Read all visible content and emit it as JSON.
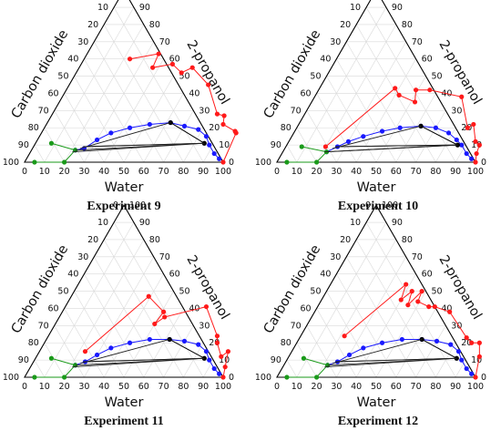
{
  "figure": {
    "axis_titles": {
      "left": "Carbon dioxide",
      "right": "2-propanol",
      "bottom": "Water"
    },
    "ticks": [
      "0",
      "10",
      "20",
      "30",
      "40",
      "50",
      "60",
      "70",
      "80",
      "90",
      "100"
    ],
    "colors": {
      "co2_phase": "#ff1a1a",
      "liquid_phase": "#1a1aff",
      "vapor_side": "#1a9a1a",
      "plait": "#000000",
      "tie_line": "#222222",
      "frame": "#000000",
      "grid": "#d9d9d9"
    }
  },
  "chart_data": [
    {
      "type": "scatter",
      "title": "Experiment 9",
      "axes": {
        "bottom": "Water",
        "left": "Carbon dioxide",
        "right": "2-propanol",
        "range": [
          0,
          100
        ],
        "grid": true
      },
      "series": [
        {
          "color": "#ff1a1a",
          "points": [
            [
              23,
              60
            ],
            [
              36,
              63
            ],
            [
              37,
              55
            ],
            [
              46,
              57
            ],
            [
              53,
              52
            ],
            [
              57,
              55
            ],
            [
              70,
              45
            ],
            [
              83,
              28
            ],
            [
              87,
              27
            ],
            [
              89,
              22
            ],
            [
              97,
              18
            ],
            [
              98,
              17
            ],
            [
              100,
              0
            ]
          ]
        },
        {
          "color": "#1a1aff",
          "points": [
            [
              22,
              7
            ],
            [
              26,
              8
            ],
            [
              30,
              13
            ],
            [
              35,
              17
            ],
            [
              43,
              20
            ],
            [
              52,
              22
            ],
            [
              62,
              23
            ],
            [
              70,
              21
            ],
            [
              78,
              19
            ],
            [
              84,
              15
            ],
            [
              88,
              10
            ],
            [
              93,
              5
            ],
            [
              97,
              2
            ]
          ]
        },
        {
          "color": "#1a9a1a",
          "points": [
            [
              5,
              0
            ],
            [
              20,
              0
            ],
            [
              22,
              7
            ],
            [
              8,
              11
            ]
          ]
        },
        {
          "color": "#000000",
          "points": [
            [
              62,
              23
            ],
            [
              85,
              11
            ]
          ]
        },
        {
          "type": "tie_lines",
          "color": "#222222",
          "segments": [
            [
              [
                22,
                7
              ],
              [
                85,
                11
              ]
            ],
            [
              [
                26,
                9
              ],
              [
                85,
                11
              ]
            ],
            [
              [
                24,
                8
              ],
              [
                62,
                23
              ]
            ],
            [
              [
                25,
                9
              ],
              [
                85,
                11
              ]
            ],
            [
              [
                21,
                6
              ],
              [
                85,
                11
              ]
            ]
          ]
        }
      ]
    },
    {
      "type": "scatter",
      "title": "Experiment 10",
      "axes": {
        "bottom": "Water",
        "left": "Carbon dioxide",
        "right": "2-propanol",
        "range": [
          0,
          100
        ],
        "grid": true
      },
      "series": [
        {
          "color": "#ff1a1a",
          "points": [
            [
              20,
              9
            ],
            [
              38,
              43
            ],
            [
              42,
              39
            ],
            [
              52,
              35
            ],
            [
              49,
              42
            ],
            [
              56,
              42
            ],
            [
              74,
              38
            ],
            [
              86,
              20
            ],
            [
              88,
              22
            ],
            [
              94,
              12
            ],
            [
              97,
              10
            ],
            [
              98,
              5
            ],
            [
              100,
              0
            ]
          ]
        },
        {
          "color": "#1a1aff",
          "points": [
            [
              22,
              6
            ],
            [
              26,
              9
            ],
            [
              30,
              12
            ],
            [
              36,
              15
            ],
            [
              44,
              18
            ],
            [
              52,
              20
            ],
            [
              62,
              21
            ],
            [
              70,
              20
            ],
            [
              78,
              17
            ],
            [
              84,
              13
            ],
            [
              88,
              10
            ],
            [
              93,
              5
            ],
            [
              97,
              2
            ]
          ]
        },
        {
          "color": "#1a9a1a",
          "points": [
            [
              5,
              0
            ],
            [
              20,
              0
            ],
            [
              22,
              6
            ],
            [
              8,
              9
            ]
          ]
        },
        {
          "color": "#000000",
          "points": [
            [
              62,
              21
            ],
            [
              86,
              10
            ]
          ]
        },
        {
          "type": "tie_lines",
          "color": "#222222",
          "segments": [
            [
              [
                22,
                6
              ],
              [
                86,
                10
              ]
            ],
            [
              [
                26,
                9
              ],
              [
                86,
                10
              ]
            ],
            [
              [
                24,
                8
              ],
              [
                62,
                21
              ]
            ],
            [
              [
                25,
                9
              ],
              [
                86,
                10
              ]
            ],
            [
              [
                21,
                6
              ],
              [
                86,
                10
              ]
            ]
          ]
        }
      ]
    },
    {
      "type": "scatter",
      "title": "Experiment 11",
      "axes": {
        "bottom": "Water",
        "left": "Carbon dioxide",
        "right": "2-propanol",
        "range": [
          0,
          100
        ],
        "grid": true
      },
      "series": [
        {
          "color": "#ff1a1a",
          "points": [
            [
              23,
              15
            ],
            [
              39,
              47
            ],
            [
              51,
              38
            ],
            [
              50,
              31
            ],
            [
              53,
              35
            ],
            [
              71,
              41
            ],
            [
              85,
              24
            ],
            [
              87,
              20
            ],
            [
              93,
              12
            ],
            [
              95,
              15
            ],
            [
              98,
              6
            ],
            [
              100,
              0
            ]
          ]
        },
        {
          "color": "#1a1aff",
          "points": [
            [
              22,
              7
            ],
            [
              26,
              9
            ],
            [
              30,
              13
            ],
            [
              35,
              17
            ],
            [
              43,
              20
            ],
            [
              52,
              22
            ],
            [
              62,
              22
            ],
            [
              70,
              21
            ],
            [
              78,
              19
            ],
            [
              84,
              15
            ],
            [
              88,
              10
            ],
            [
              93,
              5
            ],
            [
              97,
              2
            ]
          ]
        },
        {
          "color": "#1a9a1a",
          "points": [
            [
              5,
              0
            ],
            [
              20,
              0
            ],
            [
              22,
              7
            ],
            [
              8,
              11
            ]
          ]
        },
        {
          "color": "#000000",
          "points": [
            [
              62,
              22
            ],
            [
              85,
              11
            ]
          ]
        },
        {
          "type": "tie_lines",
          "color": "#222222",
          "segments": [
            [
              [
                22,
                7
              ],
              [
                85,
                11
              ]
            ],
            [
              [
                26,
                9
              ],
              [
                85,
                11
              ]
            ],
            [
              [
                24,
                8
              ],
              [
                62,
                22
              ]
            ],
            [
              [
                25,
                9
              ],
              [
                85,
                11
              ]
            ],
            [
              [
                21,
                6
              ],
              [
                85,
                11
              ]
            ]
          ]
        }
      ]
    },
    {
      "type": "scatter",
      "title": "Experiment 12",
      "axes": {
        "bottom": "Water",
        "left": "Carbon dioxide",
        "right": "2-propanol",
        "range": [
          0,
          100
        ],
        "grid": true
      },
      "series": [
        {
          "color": "#ff1a1a",
          "points": [
            [
              22,
              24
            ],
            [
              38,
              54
            ],
            [
              40,
              45
            ],
            [
              43,
              50
            ],
            [
              45,
              42
            ],
            [
              48,
              50
            ],
            [
              49,
              44
            ],
            [
              56,
              41
            ],
            [
              59,
              41
            ],
            [
              68,
              38
            ],
            [
              84,
              23
            ],
            [
              88,
              20
            ],
            [
              92,
              20
            ],
            [
              96,
              12
            ],
            [
              100,
              0
            ]
          ]
        },
        {
          "color": "#1a1aff",
          "points": [
            [
              22,
              7
            ],
            [
              26,
              9
            ],
            [
              30,
              13
            ],
            [
              35,
              17
            ],
            [
              43,
              20
            ],
            [
              52,
              22
            ],
            [
              62,
              22
            ],
            [
              70,
              21
            ],
            [
              78,
              19
            ],
            [
              84,
              15
            ],
            [
              88,
              10
            ],
            [
              93,
              5
            ],
            [
              97,
              2
            ]
          ]
        },
        {
          "color": "#1a9a1a",
          "points": [
            [
              5,
              0
            ],
            [
              20,
              0
            ],
            [
              22,
              7
            ],
            [
              8,
              11
            ]
          ]
        },
        {
          "color": "#000000",
          "points": [
            [
              62,
              22
            ],
            [
              85,
              11
            ]
          ]
        },
        {
          "type": "tie_lines",
          "color": "#222222",
          "segments": [
            [
              [
                22,
                7
              ],
              [
                85,
                11
              ]
            ],
            [
              [
                26,
                9
              ],
              [
                85,
                11
              ]
            ],
            [
              [
                24,
                8
              ],
              [
                62,
                22
              ]
            ],
            [
              [
                25,
                9
              ],
              [
                85,
                11
              ]
            ],
            [
              [
                21,
                6
              ],
              [
                85,
                11
              ]
            ]
          ]
        }
      ]
    }
  ]
}
